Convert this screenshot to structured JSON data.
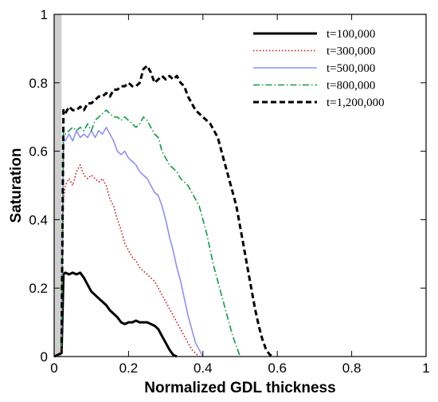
{
  "chart_data": {
    "type": "line",
    "xlabel": "Normalized GDL thickness",
    "ylabel": "Saturation",
    "xlim": [
      0,
      1
    ],
    "ylim": [
      0,
      1
    ],
    "x_ticks": [
      "0",
      "0.2",
      "0.4",
      "0.6",
      "0.8",
      "1"
    ],
    "y_ticks": [
      "0",
      "0.2",
      "0.4",
      "0.6",
      "0.8",
      "1"
    ],
    "x_tick_values": [
      0,
      0.2,
      0.4,
      0.6,
      0.8,
      1
    ],
    "y_tick_values": [
      0,
      0.2,
      0.4,
      0.6,
      0.8,
      1
    ],
    "grid": false,
    "legend_position": "top-right",
    "series": [
      {
        "name": "t=100,000",
        "color": "#000000",
        "dash": "solid",
        "x": [
          0,
          0.02,
          0.025,
          0.03,
          0.04,
          0.05,
          0.06,
          0.07,
          0.08,
          0.09,
          0.1,
          0.11,
          0.12,
          0.13,
          0.14,
          0.15,
          0.16,
          0.17,
          0.18,
          0.19,
          0.2,
          0.21,
          0.22,
          0.23,
          0.24,
          0.25,
          0.26,
          0.27,
          0.28,
          0.29,
          0.3,
          0.31,
          0.32,
          0.33
        ],
        "y": [
          0,
          0.01,
          0.24,
          0.245,
          0.24,
          0.245,
          0.24,
          0.245,
          0.23,
          0.21,
          0.19,
          0.18,
          0.17,
          0.16,
          0.15,
          0.135,
          0.125,
          0.115,
          0.1,
          0.095,
          0.1,
          0.1,
          0.105,
          0.1,
          0.1,
          0.1,
          0.095,
          0.09,
          0.08,
          0.06,
          0.04,
          0.02,
          0.005,
          0
        ]
      },
      {
        "name": "t=300,000",
        "color": "#cc1111",
        "dash": "dotted",
        "x": [
          0.02,
          0.025,
          0.03,
          0.04,
          0.05,
          0.06,
          0.07,
          0.08,
          0.09,
          0.1,
          0.11,
          0.12,
          0.13,
          0.14,
          0.15,
          0.16,
          0.17,
          0.18,
          0.19,
          0.2,
          0.21,
          0.22,
          0.23,
          0.24,
          0.25,
          0.26,
          0.27,
          0.28,
          0.29,
          0.3,
          0.31,
          0.32,
          0.33,
          0.34,
          0.35,
          0.36,
          0.37,
          0.38,
          0.39
        ],
        "y": [
          0.02,
          0.46,
          0.5,
          0.52,
          0.5,
          0.54,
          0.56,
          0.53,
          0.52,
          0.53,
          0.52,
          0.51,
          0.52,
          0.5,
          0.46,
          0.44,
          0.4,
          0.37,
          0.33,
          0.31,
          0.29,
          0.28,
          0.26,
          0.25,
          0.24,
          0.23,
          0.22,
          0.2,
          0.18,
          0.16,
          0.14,
          0.12,
          0.1,
          0.08,
          0.06,
          0.04,
          0.02,
          0.01,
          0
        ]
      },
      {
        "name": "t=500,000",
        "color": "#8f8ff2",
        "dash": "solid",
        "x": [
          0.02,
          0.025,
          0.03,
          0.04,
          0.05,
          0.06,
          0.07,
          0.08,
          0.09,
          0.1,
          0.11,
          0.12,
          0.13,
          0.14,
          0.15,
          0.16,
          0.17,
          0.18,
          0.19,
          0.2,
          0.21,
          0.22,
          0.23,
          0.24,
          0.25,
          0.26,
          0.27,
          0.28,
          0.29,
          0.3,
          0.31,
          0.32,
          0.33,
          0.34,
          0.35,
          0.36,
          0.37,
          0.38,
          0.39,
          0.4
        ],
        "y": [
          0.03,
          0.64,
          0.63,
          0.65,
          0.63,
          0.66,
          0.64,
          0.65,
          0.64,
          0.66,
          0.64,
          0.66,
          0.65,
          0.67,
          0.65,
          0.63,
          0.6,
          0.59,
          0.6,
          0.58,
          0.57,
          0.56,
          0.54,
          0.53,
          0.52,
          0.5,
          0.48,
          0.47,
          0.44,
          0.4,
          0.35,
          0.31,
          0.26,
          0.22,
          0.17,
          0.12,
          0.08,
          0.04,
          0.02,
          0
        ]
      },
      {
        "name": "t=800,000",
        "color": "#119944",
        "dash": "dashdot",
        "x": [
          0.02,
          0.025,
          0.03,
          0.04,
          0.05,
          0.06,
          0.07,
          0.08,
          0.09,
          0.1,
          0.11,
          0.12,
          0.13,
          0.14,
          0.15,
          0.16,
          0.17,
          0.18,
          0.19,
          0.2,
          0.21,
          0.22,
          0.23,
          0.24,
          0.25,
          0.26,
          0.27,
          0.28,
          0.29,
          0.3,
          0.31,
          0.32,
          0.33,
          0.34,
          0.35,
          0.36,
          0.37,
          0.38,
          0.39,
          0.4,
          0.41,
          0.42,
          0.43,
          0.44,
          0.45,
          0.46,
          0.47,
          0.48,
          0.49,
          0.5
        ],
        "y": [
          0.03,
          0.66,
          0.65,
          0.66,
          0.67,
          0.66,
          0.67,
          0.66,
          0.68,
          0.66,
          0.69,
          0.7,
          0.71,
          0.72,
          0.71,
          0.7,
          0.7,
          0.69,
          0.7,
          0.69,
          0.68,
          0.67,
          0.68,
          0.7,
          0.69,
          0.67,
          0.65,
          0.64,
          0.6,
          0.58,
          0.56,
          0.55,
          0.54,
          0.52,
          0.51,
          0.5,
          0.48,
          0.46,
          0.44,
          0.4,
          0.36,
          0.31,
          0.26,
          0.22,
          0.18,
          0.14,
          0.1,
          0.06,
          0.03,
          0
        ]
      },
      {
        "name": "t=1,200,000",
        "color": "#000000",
        "dash": "dashed",
        "x": [
          0.02,
          0.025,
          0.03,
          0.04,
          0.05,
          0.06,
          0.07,
          0.08,
          0.09,
          0.1,
          0.11,
          0.12,
          0.13,
          0.14,
          0.15,
          0.16,
          0.17,
          0.18,
          0.19,
          0.2,
          0.21,
          0.22,
          0.23,
          0.24,
          0.25,
          0.26,
          0.27,
          0.28,
          0.29,
          0.3,
          0.31,
          0.32,
          0.33,
          0.34,
          0.35,
          0.36,
          0.37,
          0.38,
          0.39,
          0.4,
          0.41,
          0.42,
          0.43,
          0.44,
          0.45,
          0.46,
          0.47,
          0.48,
          0.49,
          0.5,
          0.51,
          0.52,
          0.53,
          0.54,
          0.55,
          0.56,
          0.57,
          0.58,
          0.59
        ],
        "y": [
          0.04,
          0.72,
          0.71,
          0.73,
          0.72,
          0.72,
          0.73,
          0.72,
          0.74,
          0.74,
          0.75,
          0.76,
          0.76,
          0.77,
          0.76,
          0.78,
          0.78,
          0.79,
          0.79,
          0.8,
          0.79,
          0.79,
          0.8,
          0.84,
          0.85,
          0.83,
          0.8,
          0.81,
          0.82,
          0.81,
          0.82,
          0.81,
          0.82,
          0.8,
          0.79,
          0.76,
          0.74,
          0.72,
          0.71,
          0.7,
          0.69,
          0.68,
          0.66,
          0.64,
          0.6,
          0.56,
          0.52,
          0.48,
          0.44,
          0.38,
          0.32,
          0.26,
          0.2,
          0.14,
          0.09,
          0.05,
          0.02,
          0.005,
          0
        ]
      }
    ]
  }
}
